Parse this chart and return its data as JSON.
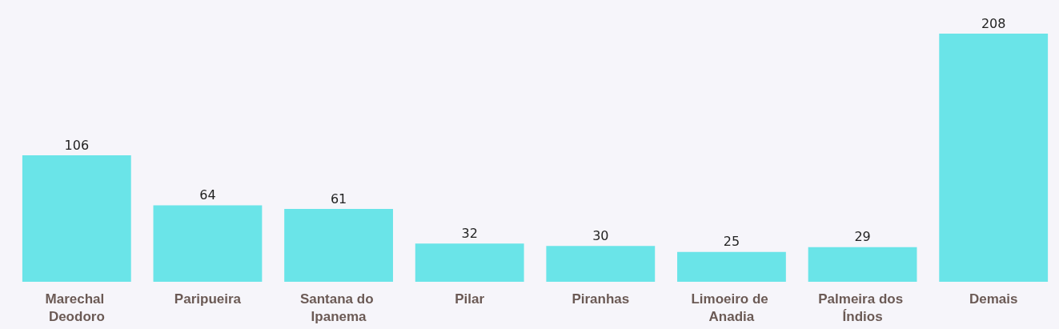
{
  "chart_data": {
    "type": "bar",
    "categories": [
      "Marechal Deodoro",
      "Paripueira",
      "Santana do Ipanema",
      "Pilar",
      "Piranhas",
      "Limoeiro de Anadia",
      "Palmeira dos Índios",
      "Demais"
    ],
    "values": [
      106,
      64,
      61,
      32,
      30,
      25,
      29,
      208
    ],
    "color": "#6ae4e8",
    "data_labels": true
  }
}
